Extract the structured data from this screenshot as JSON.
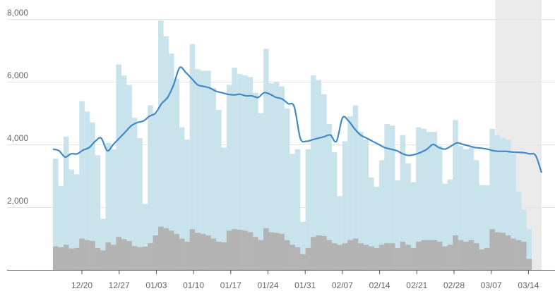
{
  "chart_data": {
    "type": "bar",
    "x_start": "12/15",
    "x_ticks": [
      "12/20",
      "12/27",
      "01/03",
      "01/10",
      "01/17",
      "01/24",
      "01/31",
      "02/07",
      "02/14",
      "02/21",
      "02/28",
      "03/07",
      "03/14"
    ],
    "y_ticks": [
      "2,000",
      "4,000",
      "6,000",
      "8,000"
    ],
    "ylim": [
      0,
      8000
    ],
    "grid": true,
    "highlight_range": [
      "03/07",
      "03/14"
    ],
    "colors": {
      "bar_total": "#c9e3ec",
      "bar_secondary": "#b3b3b3",
      "line": "#3f89c6",
      "highlight": "#e6e6e6",
      "grid": "#e3e3e3",
      "axis": "#555555"
    },
    "series": [
      {
        "values": [
          3550,
          2680,
          4250,
          3200,
          3050,
          5380,
          5050,
          4700,
          3650,
          1630,
          4050,
          3850,
          6550,
          6200,
          5900,
          4850,
          4200,
          2100,
          5250,
          5000,
          7950,
          7450,
          6900,
          6100,
          4550,
          4150,
          7200,
          6400,
          6350,
          6350,
          5800,
          5100,
          3900,
          5900,
          6450,
          6250,
          6200,
          6150,
          5650,
          5000,
          7050,
          5950,
          6000,
          5850,
          5150,
          3700,
          3850,
          1530,
          3850,
          6200,
          6050,
          5600,
          4650,
          3750,
          2350,
          4100,
          4900,
          5250,
          4400,
          4150,
          2950,
          2650,
          3500,
          4650,
          4600,
          2850,
          4300,
          3400,
          2800,
          4550,
          4500,
          4400,
          4400,
          3950,
          2750,
          2880,
          4780,
          3950,
          3850,
          3900,
          3500,
          2700,
          2700,
          4500,
          4300,
          4200,
          4150,
          3700,
          2500,
          1920,
          1300
        ]
      },
      {
        "values": [
          750,
          720,
          800,
          680,
          700,
          1000,
          950,
          920,
          700,
          620,
          880,
          800,
          1050,
          980,
          920,
          760,
          720,
          740,
          850,
          1100,
          1380,
          1330,
          1250,
          1150,
          1000,
          900,
          1300,
          1180,
          1150,
          1100,
          1000,
          900,
          880,
          1250,
          1300,
          1280,
          1250,
          1200,
          1050,
          950,
          1330,
          1200,
          1180,
          1150,
          950,
          800,
          720,
          500,
          700,
          1050,
          1100,
          1080,
          950,
          850,
          800,
          850,
          950,
          1000,
          850,
          800,
          750,
          700,
          800,
          850,
          850,
          700,
          900,
          800,
          700,
          900,
          950,
          950,
          950,
          900,
          750,
          800,
          1100,
          950,
          900,
          950,
          850,
          650,
          700,
          1300,
          1200,
          1180,
          1100,
          1000,
          950,
          900,
          350
        ]
      },
      {
        "type": "line",
        "values": [
          3850,
          3800,
          3600,
          3700,
          3700,
          3820,
          3900,
          4100,
          4200,
          3800,
          4000,
          4200,
          4400,
          4600,
          4700,
          4750,
          4900,
          5000,
          5300,
          5500,
          5900,
          6450,
          6300,
          6100,
          5900,
          5850,
          5800,
          5700,
          5650,
          5600,
          5580,
          5600,
          5550,
          5550,
          5500,
          5650,
          5600,
          5500,
          5450,
          5300,
          5200,
          4200,
          4100,
          4150,
          4200,
          4250,
          4300,
          4100,
          4850,
          4750,
          4500,
          4300,
          4200,
          4100,
          4000,
          3900,
          3850,
          3800,
          3700,
          3650,
          3680,
          3750,
          3850,
          4000,
          3900,
          3850,
          3950,
          4050,
          4000,
          3950,
          3900,
          3880,
          3850,
          3800,
          3780,
          3780,
          3760,
          3750,
          3740,
          3700,
          3650,
          3100
        ]
      }
    ]
  }
}
